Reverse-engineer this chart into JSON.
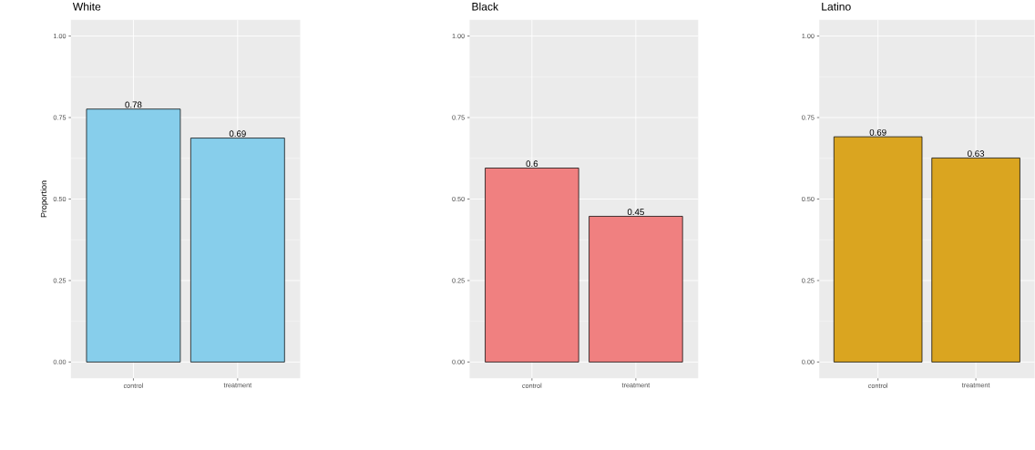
{
  "chart_data": [
    {
      "type": "bar",
      "title": "White",
      "ylabel": "Proportion",
      "categories": [
        "control",
        "treatment"
      ],
      "values": [
        0.776,
        0.687
      ],
      "value_labels": [
        "0.78",
        "0.69"
      ],
      "color": "#87ceeb",
      "ylim": [
        -0.05,
        1.05
      ],
      "yticks": [
        {
          "value": 0,
          "label": "0.00"
        },
        {
          "value": 0.25,
          "label": "0.25"
        },
        {
          "value": 0.5,
          "label": "0.50"
        },
        {
          "value": 0.75,
          "label": "0.75"
        },
        {
          "value": 1,
          "label": "1.00"
        }
      ],
      "grid": true
    },
    {
      "type": "bar",
      "title": "Black",
      "categories": [
        "control",
        "treatment"
      ],
      "values": [
        0.595,
        0.447
      ],
      "value_labels": [
        "0.6",
        "0.45"
      ],
      "color": "#f08080",
      "ylim": [
        -0.05,
        1.05
      ],
      "yticks": [
        {
          "value": 0,
          "label": "0.00"
        },
        {
          "value": 0.25,
          "label": "0.25"
        },
        {
          "value": 0.5,
          "label": "0.50"
        },
        {
          "value": 0.75,
          "label": "0.75"
        },
        {
          "value": 1,
          "label": "1.00"
        }
      ],
      "grid": true
    },
    {
      "type": "bar",
      "title": "Latino",
      "categories": [
        "control",
        "treatment"
      ],
      "values": [
        0.691,
        0.626
      ],
      "value_labels": [
        "0.69",
        "0.63"
      ],
      "color": "#daa520",
      "ylim": [
        -0.05,
        1.05
      ],
      "yticks": [
        {
          "value": 0,
          "label": "0.00"
        },
        {
          "value": 0.25,
          "label": "0.25"
        },
        {
          "value": 0.5,
          "label": "0.50"
        },
        {
          "value": 0.75,
          "label": "0.75"
        },
        {
          "value": 1,
          "label": "1.00"
        }
      ],
      "grid": true
    }
  ]
}
